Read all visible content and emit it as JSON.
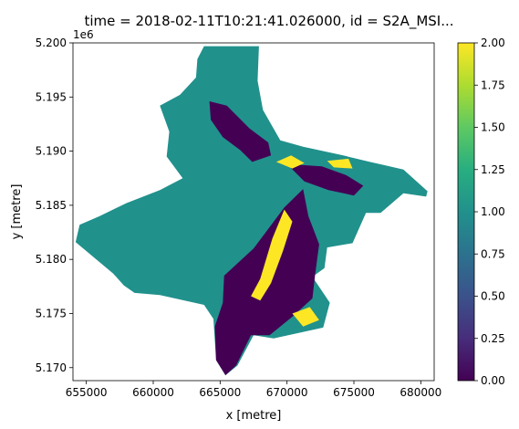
{
  "chart_data": {
    "type": "heatmap",
    "title": "time = 2018-02-11T10:21:41.026000, id = S2A_MSI...",
    "xlabel": "x [metre]",
    "ylabel": "y [metre]",
    "y_offset_label": "1e6",
    "xlim": [
      654000,
      681000
    ],
    "ylim": [
      5168800,
      5200000
    ],
    "x_ticks": [
      655000,
      660000,
      665000,
      670000,
      675000,
      680000
    ],
    "x_tick_labels": [
      "655000",
      "660000",
      "665000",
      "670000",
      "675000",
      "680000"
    ],
    "y_ticks": [
      5170000,
      5175000,
      5180000,
      5185000,
      5190000,
      5195000,
      5200000
    ],
    "y_tick_labels": [
      "5.170",
      "5.175",
      "5.180",
      "5.185",
      "5.190",
      "5.195",
      "5.200"
    ],
    "colorbar": {
      "colormap": "viridis",
      "range": [
        0,
        2
      ],
      "ticks": [
        0.0,
        0.25,
        0.5,
        0.75,
        1.0,
        1.25,
        1.5,
        1.75,
        2.0
      ],
      "tick_labels": [
        "0.00",
        "0.25",
        "0.50",
        "0.75",
        "1.00",
        "1.25",
        "1.50",
        "1.75",
        "2.00"
      ]
    },
    "regions": [
      {
        "class_value": 1,
        "color": "#21918c",
        "outline": [
          [
            663800,
            5199700
          ],
          [
            667900,
            5199700
          ],
          [
            667800,
            5196500
          ],
          [
            668200,
            5193800
          ],
          [
            669500,
            5191000
          ],
          [
            671200,
            5190400
          ],
          [
            674200,
            5189600
          ],
          [
            676200,
            5189000
          ],
          [
            677300,
            5188700
          ],
          [
            678700,
            5188300
          ],
          [
            680500,
            5186300
          ],
          [
            680400,
            5185800
          ],
          [
            678700,
            5186100
          ],
          [
            677000,
            5184300
          ],
          [
            675900,
            5184300
          ],
          [
            674900,
            5181500
          ],
          [
            673000,
            5181100
          ],
          [
            672800,
            5179200
          ],
          [
            671900,
            5178400
          ],
          [
            673200,
            5176000
          ],
          [
            672700,
            5173700
          ],
          [
            669000,
            5172700
          ],
          [
            667500,
            5173000
          ],
          [
            666300,
            5170200
          ],
          [
            665400,
            5169300
          ],
          [
            664700,
            5170700
          ],
          [
            664500,
            5174500
          ],
          [
            663800,
            5175800
          ],
          [
            660500,
            5176700
          ],
          [
            658600,
            5176900
          ],
          [
            657800,
            5177600
          ],
          [
            657000,
            5178700
          ],
          [
            654200,
            5181600
          ],
          [
            654500,
            5183200
          ],
          [
            656000,
            5184000
          ],
          [
            658000,
            5185200
          ],
          [
            660500,
            5186400
          ],
          [
            662200,
            5187500
          ],
          [
            661000,
            5189500
          ],
          [
            661200,
            5191800
          ],
          [
            660500,
            5194200
          ],
          [
            662000,
            5195200
          ],
          [
            663200,
            5196800
          ],
          [
            663300,
            5198500
          ]
        ]
      },
      {
        "class_value": 0,
        "color": "#440154",
        "outline": [
          [
            665300,
            5178500
          ],
          [
            667500,
            5181000
          ],
          [
            669800,
            5184800
          ],
          [
            671200,
            5186500
          ],
          [
            671600,
            5184000
          ],
          [
            672400,
            5181400
          ],
          [
            672100,
            5178600
          ],
          [
            671900,
            5176400
          ],
          [
            670400,
            5174700
          ],
          [
            668700,
            5173000
          ],
          [
            667300,
            5173000
          ],
          [
            666200,
            5170200
          ],
          [
            665400,
            5169300
          ],
          [
            664700,
            5170700
          ],
          [
            664600,
            5173800
          ],
          [
            665200,
            5176000
          ]
        ]
      },
      {
        "class_value": 0,
        "color": "#440154",
        "outline": [
          [
            664200,
            5194600
          ],
          [
            665500,
            5194200
          ],
          [
            667200,
            5192100
          ],
          [
            668600,
            5190800
          ],
          [
            668800,
            5189600
          ],
          [
            667400,
            5189000
          ],
          [
            666500,
            5190100
          ],
          [
            665200,
            5191300
          ],
          [
            664300,
            5192900
          ]
        ]
      },
      {
        "class_value": 0,
        "color": "#440154",
        "outline": [
          [
            670000,
            5188800
          ],
          [
            672600,
            5188600
          ],
          [
            674400,
            5187800
          ],
          [
            675700,
            5186800
          ],
          [
            675000,
            5185900
          ],
          [
            673100,
            5186400
          ],
          [
            671300,
            5187200
          ]
        ]
      },
      {
        "class_value": 2,
        "color": "#fde725",
        "outline": [
          [
            667300,
            5176600
          ],
          [
            668000,
            5178200
          ],
          [
            668900,
            5181900
          ],
          [
            669800,
            5184600
          ],
          [
            670400,
            5183500
          ],
          [
            669700,
            5180800
          ],
          [
            668800,
            5177800
          ],
          [
            668000,
            5176200
          ]
        ]
      },
      {
        "class_value": 2,
        "color": "#fde725",
        "outline": [
          [
            669200,
            5189000
          ],
          [
            670300,
            5189600
          ],
          [
            671300,
            5188900
          ],
          [
            670400,
            5188400
          ]
        ]
      },
      {
        "class_value": 2,
        "color": "#fde725",
        "outline": [
          [
            670400,
            5175000
          ],
          [
            671700,
            5175600
          ],
          [
            672400,
            5174400
          ],
          [
            671200,
            5173800
          ]
        ]
      },
      {
        "class_value": 2,
        "color": "#fde725",
        "outline": [
          [
            673000,
            5189100
          ],
          [
            674600,
            5189300
          ],
          [
            674900,
            5188400
          ],
          [
            673500,
            5188500
          ]
        ]
      }
    ]
  }
}
